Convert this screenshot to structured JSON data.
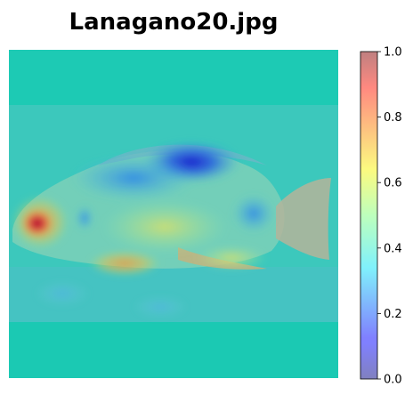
{
  "chart_data": {
    "type": "heatmap",
    "title": "Lanagano20.jpg",
    "overlay_alpha": 0.5,
    "base_color": "#1ac8b4",
    "colorbar": {
      "colormap": "jet",
      "range": [
        0.0,
        1.0
      ],
      "ticks": [
        0.0,
        0.2,
        0.4,
        0.6,
        0.8,
        1.0
      ],
      "tick_labels": [
        "0.0",
        "0.2",
        "0.4",
        "0.6",
        "0.8",
        "1.0"
      ]
    },
    "image_content": "fish heatmap overlay",
    "hotspots": [
      {
        "label": "eye",
        "value": 0.98
      },
      {
        "label": "ventral fin",
        "value": 0.72
      },
      {
        "label": "dorsal region",
        "value": 0.05
      },
      {
        "label": "caudal peduncle",
        "value": 0.2
      },
      {
        "label": "body",
        "value": 0.4
      }
    ]
  }
}
